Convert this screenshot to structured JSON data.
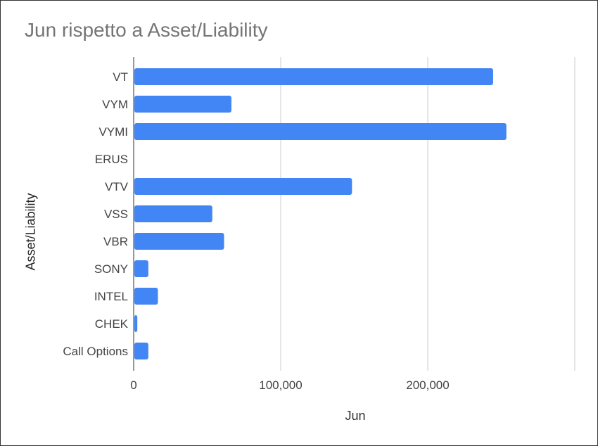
{
  "chart_data": {
    "type": "bar",
    "orientation": "horizontal",
    "title": "Jun rispetto a Asset/Liability",
    "xlabel": "Jun",
    "ylabel": "Asset/Liability",
    "categories": [
      "VT",
      "VYM",
      "VYMI",
      "ERUS",
      "VTV",
      "VSS",
      "VBR",
      "SONY",
      "INTEL",
      "CHEK",
      "Call Options"
    ],
    "values": [
      244000,
      66000,
      253000,
      0,
      148000,
      53000,
      61000,
      9500,
      16000,
      2000,
      9500
    ],
    "xlim": [
      0,
      300000
    ],
    "x_ticks": [
      {
        "value": 0,
        "label": "0"
      },
      {
        "value": 100000,
        "label": "100,000"
      },
      {
        "value": 200000,
        "label": "200,000"
      }
    ],
    "gridlines": [
      100000,
      200000,
      300000
    ],
    "grid": true,
    "legend": "none",
    "bar_color": "#4285f4"
  }
}
